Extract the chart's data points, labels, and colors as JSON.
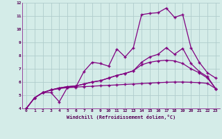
{
  "xlabel": "Windchill (Refroidissement éolien,°C)",
  "background_color": "#d4ece8",
  "grid_color": "#b0cccc",
  "line_color": "#800080",
  "xlim": [
    -0.5,
    23.5
  ],
  "ylim": [
    4,
    12
  ],
  "xticks": [
    0,
    1,
    2,
    3,
    4,
    5,
    6,
    7,
    8,
    9,
    10,
    11,
    12,
    13,
    14,
    15,
    16,
    17,
    18,
    19,
    20,
    21,
    22,
    23
  ],
  "yticks": [
    4,
    5,
    6,
    7,
    8,
    9,
    10,
    11,
    12
  ],
  "line1": [
    4.0,
    4.8,
    5.2,
    5.2,
    4.5,
    5.6,
    5.6,
    6.8,
    7.5,
    7.4,
    7.2,
    8.5,
    7.9,
    8.6,
    11.1,
    11.2,
    11.25,
    11.6,
    10.9,
    11.1,
    8.6,
    7.5,
    6.7,
    6.3
  ],
  "line2": [
    4.0,
    4.8,
    5.2,
    5.4,
    5.55,
    5.65,
    5.7,
    5.85,
    6.0,
    6.1,
    6.3,
    6.5,
    6.65,
    6.85,
    7.5,
    7.9,
    8.1,
    8.6,
    8.1,
    8.55,
    7.4,
    6.8,
    6.4,
    5.5
  ],
  "line3": [
    4.0,
    4.8,
    5.2,
    5.4,
    5.55,
    5.65,
    5.7,
    5.85,
    6.0,
    6.1,
    6.3,
    6.5,
    6.65,
    6.85,
    7.3,
    7.5,
    7.6,
    7.65,
    7.6,
    7.4,
    7.0,
    6.7,
    6.3,
    5.5
  ],
  "line4": [
    4.0,
    4.8,
    5.2,
    5.4,
    5.5,
    5.58,
    5.62,
    5.65,
    5.68,
    5.72,
    5.75,
    5.78,
    5.82,
    5.85,
    5.88,
    5.92,
    5.95,
    5.98,
    6.0,
    6.0,
    5.98,
    5.95,
    5.9,
    5.5
  ]
}
